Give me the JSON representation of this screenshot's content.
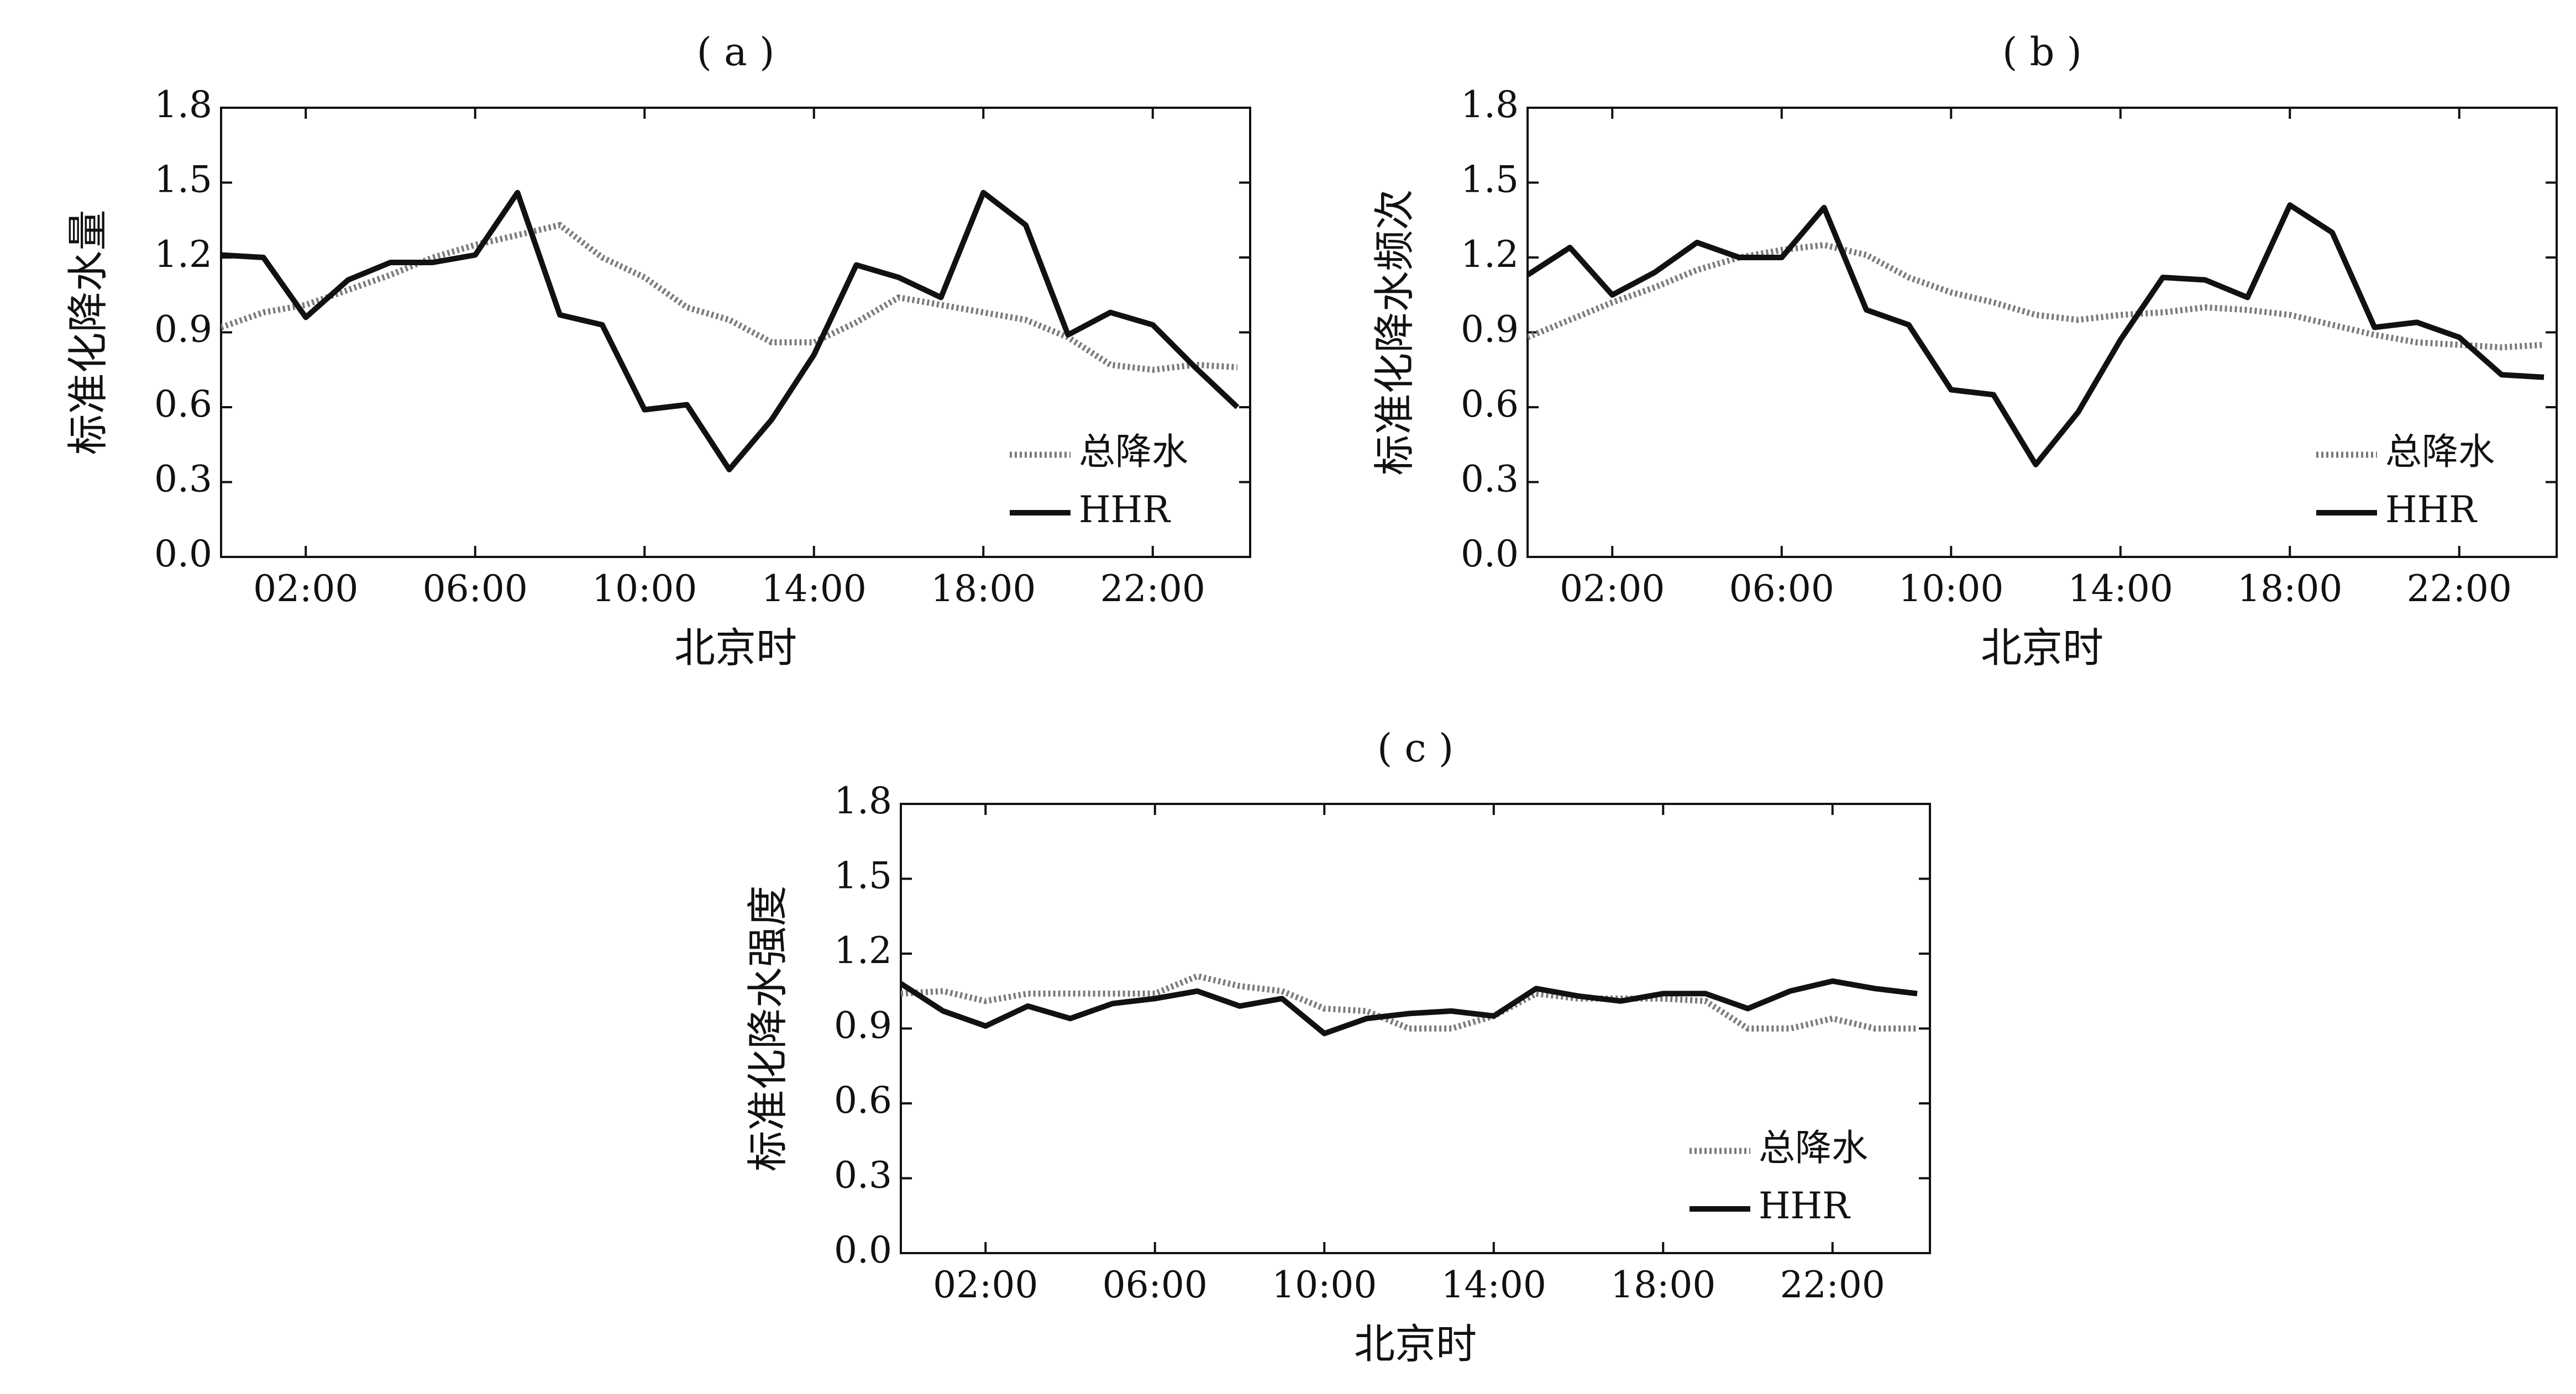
{
  "chart_data": [
    {
      "type": "line",
      "panel_label": "( a )",
      "xlabel": "北京时",
      "ylabel": "标准化降水量",
      "x": [
        "00:00",
        "01:00",
        "02:00",
        "03:00",
        "04:00",
        "05:00",
        "06:00",
        "07:00",
        "08:00",
        "09:00",
        "10:00",
        "11:00",
        "12:00",
        "13:00",
        "14:00",
        "15:00",
        "16:00",
        "17:00",
        "18:00",
        "19:00",
        "20:00",
        "21:00",
        "22:00",
        "23:00",
        "24:00"
      ],
      "x_tick_labels": [
        "02:00",
        "06:00",
        "10:00",
        "14:00",
        "18:00",
        "22:00"
      ],
      "ylim": [
        0,
        1.8
      ],
      "y_ticks": [
        "0.0",
        "0.3",
        "0.6",
        "0.9",
        "1.2",
        "1.5",
        "1.8"
      ],
      "legend_position": "lower-right",
      "grid": false,
      "series": [
        {
          "name": "总降水",
          "style": "dotted",
          "color": "#7a7a7a",
          "values": [
            0.92,
            0.98,
            1.01,
            1.07,
            1.13,
            1.2,
            1.25,
            1.29,
            1.33,
            1.2,
            1.12,
            1.0,
            0.95,
            0.86,
            0.86,
            0.94,
            1.04,
            1.01,
            0.98,
            0.95,
            0.88,
            0.77,
            0.75,
            0.77,
            0.76
          ]
        },
        {
          "name": "HHR",
          "style": "solid",
          "color": "#111111",
          "values": [
            1.21,
            1.2,
            0.96,
            1.11,
            1.18,
            1.18,
            1.21,
            1.46,
            0.97,
            0.93,
            0.59,
            0.61,
            0.35,
            0.55,
            0.81,
            1.17,
            1.12,
            1.04,
            1.46,
            1.33,
            0.89,
            0.98,
            0.93,
            0.76,
            0.6
          ]
        }
      ]
    },
    {
      "type": "line",
      "panel_label": "( b )",
      "xlabel": "北京时",
      "ylabel": "标准化降水频次",
      "x": [
        "00:00",
        "01:00",
        "02:00",
        "03:00",
        "04:00",
        "05:00",
        "06:00",
        "07:00",
        "08:00",
        "09:00",
        "10:00",
        "11:00",
        "12:00",
        "13:00",
        "14:00",
        "15:00",
        "16:00",
        "17:00",
        "18:00",
        "19:00",
        "20:00",
        "21:00",
        "22:00",
        "23:00",
        "24:00"
      ],
      "x_tick_labels": [
        "02:00",
        "06:00",
        "10:00",
        "14:00",
        "18:00",
        "22:00"
      ],
      "ylim": [
        0,
        1.8
      ],
      "y_ticks": [
        "0.0",
        "0.3",
        "0.6",
        "0.9",
        "1.2",
        "1.5",
        "1.8"
      ],
      "legend_position": "lower-right",
      "grid": false,
      "series": [
        {
          "name": "总降水",
          "style": "dotted",
          "color": "#7a7a7a",
          "values": [
            0.88,
            0.95,
            1.02,
            1.08,
            1.15,
            1.2,
            1.23,
            1.25,
            1.21,
            1.12,
            1.06,
            1.02,
            0.97,
            0.95,
            0.97,
            0.98,
            1.0,
            0.99,
            0.97,
            0.93,
            0.89,
            0.86,
            0.85,
            0.84,
            0.85
          ]
        },
        {
          "name": "HHR",
          "style": "solid",
          "color": "#111111",
          "values": [
            1.13,
            1.24,
            1.05,
            1.14,
            1.26,
            1.2,
            1.2,
            1.4,
            0.99,
            0.93,
            0.67,
            0.65,
            0.37,
            0.58,
            0.87,
            1.12,
            1.11,
            1.04,
            1.41,
            1.3,
            0.92,
            0.94,
            0.88,
            0.73,
            0.72
          ]
        }
      ]
    },
    {
      "type": "line",
      "panel_label": "( c )",
      "xlabel": "北京时",
      "ylabel": "标准化降水强度",
      "x": [
        "00:00",
        "01:00",
        "02:00",
        "03:00",
        "04:00",
        "05:00",
        "06:00",
        "07:00",
        "08:00",
        "09:00",
        "10:00",
        "11:00",
        "12:00",
        "13:00",
        "14:00",
        "15:00",
        "16:00",
        "17:00",
        "18:00",
        "19:00",
        "20:00",
        "21:00",
        "22:00",
        "23:00",
        "24:00"
      ],
      "x_tick_labels": [
        "02:00",
        "06:00",
        "10:00",
        "14:00",
        "18:00",
        "22:00"
      ],
      "ylim": [
        0,
        1.8
      ],
      "y_ticks": [
        "0.0",
        "0.3",
        "0.6",
        "0.9",
        "1.2",
        "1.5",
        "1.8"
      ],
      "legend_position": "lower-right",
      "grid": false,
      "series": [
        {
          "name": "总降水",
          "style": "dotted",
          "color": "#7a7a7a",
          "values": [
            1.04,
            1.05,
            1.01,
            1.04,
            1.04,
            1.04,
            1.04,
            1.11,
            1.07,
            1.05,
            0.98,
            0.97,
            0.9,
            0.9,
            0.95,
            1.04,
            1.02,
            1.02,
            1.02,
            1.01,
            0.9,
            0.9,
            0.94,
            0.9,
            0.9
          ]
        },
        {
          "name": "HHR",
          "style": "solid",
          "color": "#111111",
          "values": [
            1.08,
            0.97,
            0.91,
            0.99,
            0.94,
            1.0,
            1.02,
            1.05,
            0.99,
            1.02,
            0.88,
            0.94,
            0.96,
            0.97,
            0.95,
            1.06,
            1.03,
            1.01,
            1.04,
            1.04,
            0.98,
            1.05,
            1.09,
            1.06,
            1.04
          ]
        }
      ]
    }
  ]
}
